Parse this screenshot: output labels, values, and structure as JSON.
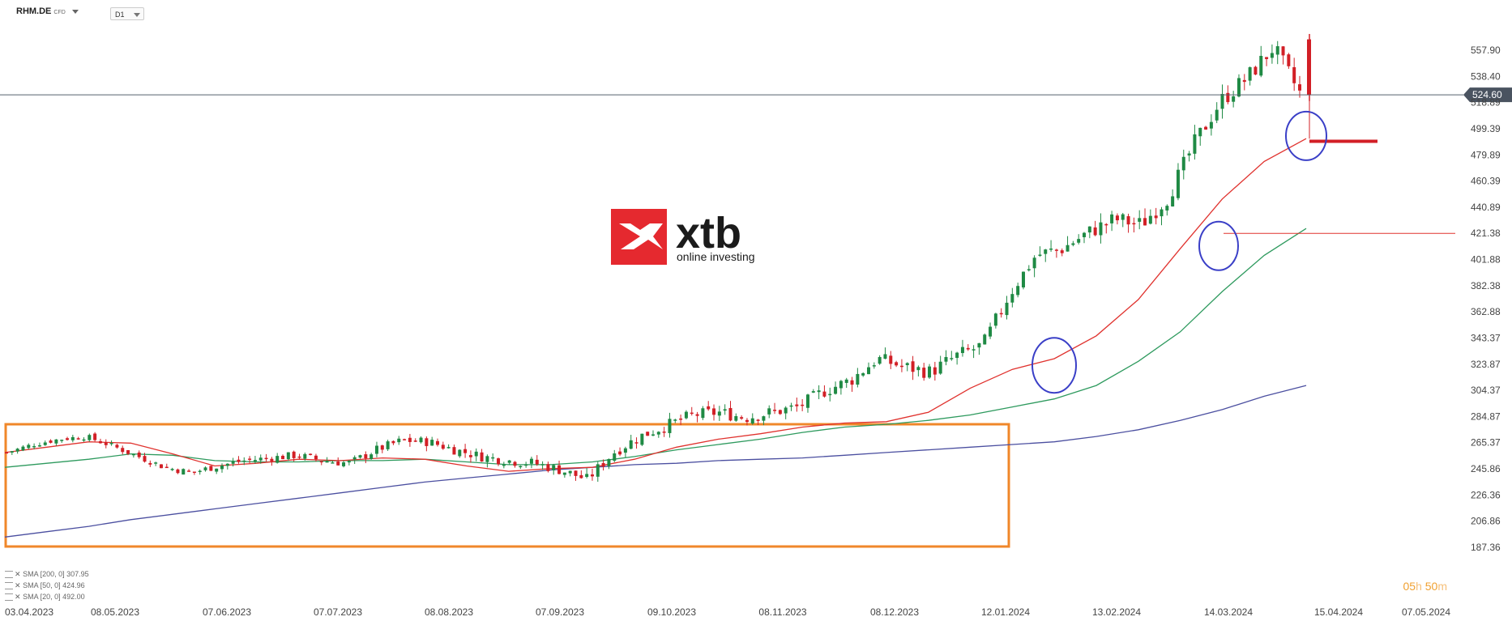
{
  "header": {
    "symbol": "RHM.DE",
    "symbol_type": "CFD",
    "timeframe": "D1"
  },
  "indicators": [
    {
      "label": "SMA [200, 0] 307.95",
      "color": "#4b4fa0"
    },
    {
      "label": "SMA [50, 0] 424.96",
      "color": "#2e9a5e"
    },
    {
      "label": "SMA [20, 0] 492.00",
      "color": "#e0322e"
    }
  ],
  "timer": {
    "hours": "05",
    "h_unit": "h",
    "minutes": "50",
    "m_unit": "m"
  },
  "logo": {
    "brand": "xtb",
    "tagline": "online investing",
    "color": "#e5292f"
  },
  "colors": {
    "up": "#1f8a44",
    "down": "#d21f26",
    "sma200": "#4b4fa0",
    "sma50": "#2e9a5e",
    "sma20": "#e0322e",
    "box": "#f0872a",
    "circle": "#3a3fc7",
    "price_line": "#55606e",
    "grid_text": "#444444"
  },
  "chart_data": {
    "type": "line",
    "title": "RHM.DE CFD D1",
    "x_axis": {
      "type": "date",
      "tick_labels": [
        "03.04.2023",
        "08.05.2023",
        "07.06.2023",
        "07.07.2023",
        "08.08.2023",
        "07.09.2023",
        "09.10.2023",
        "08.11.2023",
        "08.12.2023",
        "12.01.2024",
        "13.02.2024",
        "14.03.2024",
        "15.04.2024",
        "07.05.2024"
      ]
    },
    "y_axis": {
      "range": [
        187.36,
        570.0
      ],
      "tick_labels": [
        "557.90",
        "538.40",
        "518.89",
        "499.39",
        "479.89",
        "460.39",
        "440.89",
        "421.38",
        "401.88",
        "382.38",
        "362.88",
        "343.37",
        "323.87",
        "304.37",
        "284.87",
        "265.37",
        "245.86",
        "226.36",
        "206.86",
        "187.36"
      ]
    },
    "current_price": {
      "value": 524.6,
      "label": "524.60"
    },
    "series": [
      {
        "name": "SMA [200, 0] 307.95",
        "y": [
          195,
          199,
          203,
          208,
          212,
          216,
          220,
          224,
          228,
          232,
          236,
          239,
          242,
          245,
          247,
          249,
          250,
          252,
          253,
          254,
          256,
          258,
          260,
          262,
          264,
          266,
          270,
          275,
          282,
          290,
          300,
          308
        ]
      },
      {
        "name": "SMA [50, 0] 424.96",
        "y": [
          247,
          250,
          253,
          257,
          256,
          252,
          251,
          251,
          252,
          252,
          253,
          251,
          249,
          249,
          251,
          255,
          260,
          264,
          268,
          273,
          277,
          279,
          282,
          286,
          292,
          298,
          308,
          326,
          348,
          378,
          405,
          425
        ]
      },
      {
        "name": "SMA [20, 0] 492.00",
        "y": [
          258,
          262,
          266,
          265,
          257,
          248,
          250,
          253,
          252,
          254,
          253,
          248,
          244,
          246,
          247,
          253,
          262,
          268,
          272,
          277,
          280,
          281,
          288,
          306,
          320,
          328,
          345,
          372,
          410,
          447,
          475,
          492
        ]
      },
      {
        "name": "Close",
        "y": [
          258,
          264,
          268,
          270,
          263,
          255,
          247,
          243,
          248,
          252,
          254,
          256,
          252,
          250,
          260,
          267,
          266,
          260,
          255,
          252,
          250,
          245,
          238,
          258,
          270,
          278,
          286,
          288,
          284,
          288,
          292,
          304,
          312,
          328,
          322,
          318,
          330,
          338,
          376,
          405,
          410,
          422,
          432,
          428,
          448,
          488,
          520,
          537,
          560,
          526
        ]
      }
    ],
    "annotations": [
      {
        "type": "box",
        "x_range": [
          "03.04.2023",
          "09.01.2024"
        ],
        "y_range": [
          226.36,
          306
        ]
      },
      {
        "type": "circle",
        "x": "16.01.2024",
        "y": 323
      },
      {
        "type": "circle",
        "x": "07.03.2024",
        "y": 412
      },
      {
        "type": "circle",
        "x": "29.03.2024",
        "y": 490
      },
      {
        "type": "hline",
        "y": 421.38
      },
      {
        "type": "hline",
        "y": 490
      }
    ]
  }
}
